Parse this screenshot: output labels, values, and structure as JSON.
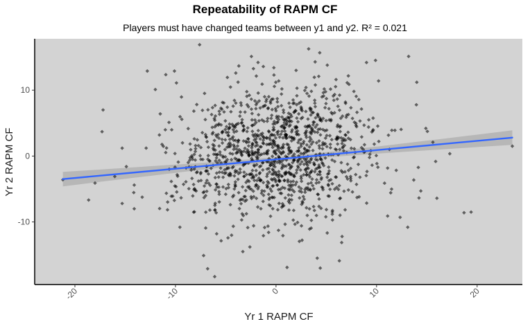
{
  "chart_data": {
    "type": "scatter",
    "title": "Repeatability of RAPM CF",
    "subtitle": "Players must have changed teams between y1 and y2. R² = 0.021",
    "xlabel": "Yr 1 RAPM CF",
    "ylabel": "Yr 2 RAPM CF",
    "xlim": [
      -24,
      24.5
    ],
    "ylim": [
      -19.5,
      17.8
    ],
    "x_ticks": [
      -20,
      -10,
      0,
      10,
      20
    ],
    "y_ticks": [
      -10,
      0,
      10
    ],
    "grid": false,
    "background_color": "#d3d3d3",
    "point_color": "#000000",
    "point_opacity": 0.55,
    "trend_line": {
      "method": "linear fit with confidence band",
      "color": "#3366ff",
      "band_color": "#b2b2b2",
      "x": [
        -21.2,
        23.5
      ],
      "y": [
        -3.5,
        2.8
      ],
      "band_halfwidth_at_ends": 1.1,
      "band_halfwidth_at_center": 0.35
    },
    "outlier_points": [
      [
        -21.2,
        -3.6
      ],
      [
        -17.2,
        7.0
      ],
      [
        -17.3,
        3.7
      ],
      [
        -15.3,
        1.2
      ],
      [
        -15.3,
        -7.2
      ],
      [
        -14.1,
        -4.4
      ],
      [
        -14.1,
        -8.0
      ],
      [
        -12.8,
        12.9
      ],
      [
        -12.0,
        10.1
      ],
      [
        -11.6,
        3.2
      ],
      [
        -10.1,
        12.9
      ],
      [
        -9.9,
        11.1
      ],
      [
        -9.3,
        2.0
      ],
      [
        -7.6,
        16.9
      ],
      [
        -6.8,
        -17.1
      ],
      [
        -6.1,
        -18.3
      ],
      [
        -5.9,
        -11.8
      ],
      [
        1.1,
        -16.9
      ],
      [
        4.1,
        -15.5
      ],
      [
        5.1,
        13.8
      ],
      [
        6.3,
        -15.9
      ],
      [
        9.0,
        14.2
      ],
      [
        14.0,
        11.2
      ],
      [
        14.9,
        4.2
      ],
      [
        14.4,
        -5.3
      ],
      [
        13.1,
        -10.8
      ],
      [
        15.6,
        2.1
      ],
      [
        16.0,
        -6.4
      ],
      [
        18.7,
        -8.6
      ],
      [
        19.4,
        -8.5
      ],
      [
        23.5,
        1.5
      ],
      [
        -7.2,
        -15.1
      ],
      [
        4.4,
        -17.0
      ],
      [
        10.2,
        11.4
      ],
      [
        11.1,
        -9.1
      ],
      [
        -4.0,
        12.6
      ],
      [
        2.0,
        13.0
      ],
      [
        -3.3,
        -14.5
      ],
      [
        -2.6,
        -13.8
      ],
      [
        -18.0,
        -4.1
      ]
    ],
    "cluster": {
      "n_points": 1250,
      "x_mean": 0.2,
      "x_sd": 5.0,
      "y_mean": 0.5,
      "y_sd": 5.0,
      "seed": 20190421
    }
  }
}
